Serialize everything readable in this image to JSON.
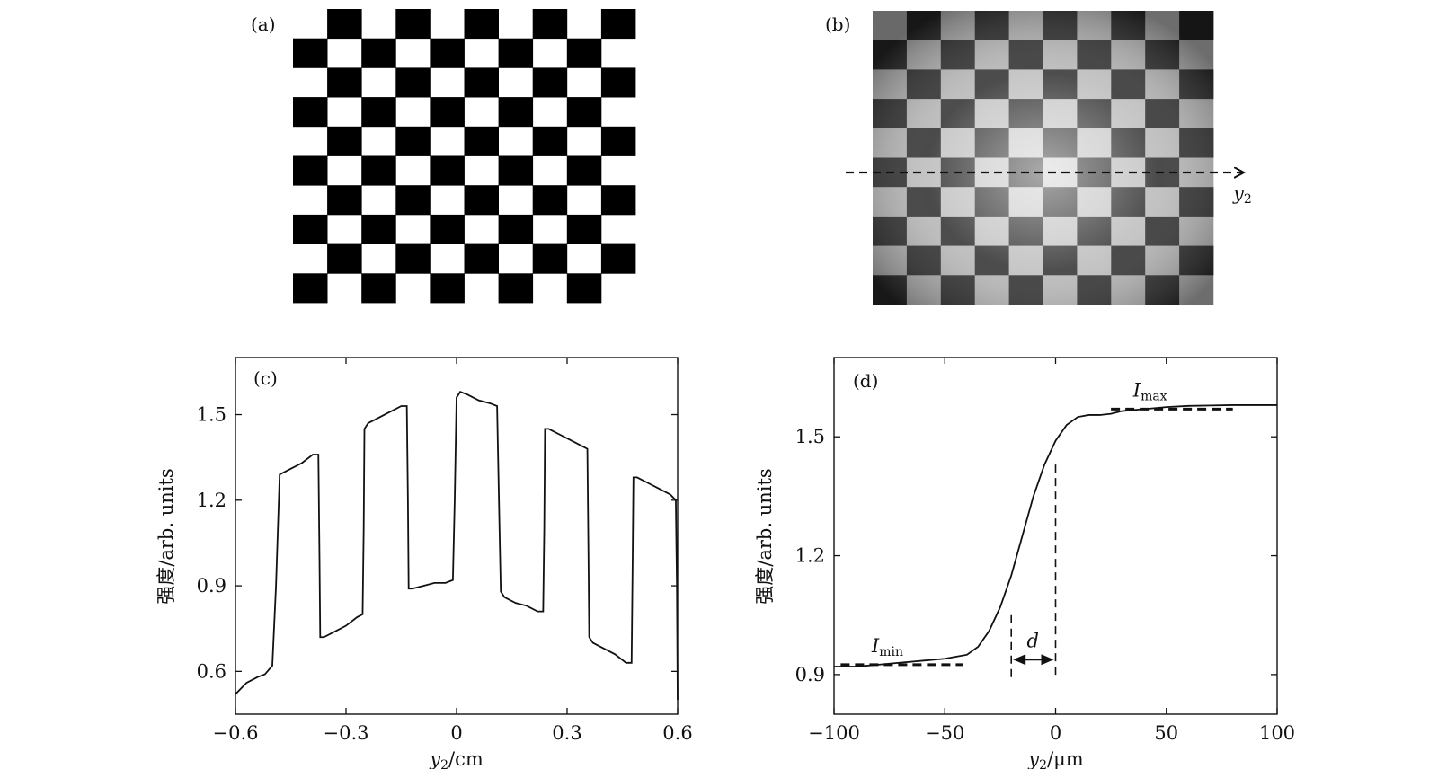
{
  "panels": {
    "a": {
      "label": "(a)",
      "description_free": true
    },
    "b": {
      "label": "(b)",
      "arrow_label_main": "y",
      "arrow_label_sub": "2"
    }
  },
  "chart_data": [
    {
      "panel": "(c)",
      "type": "line",
      "x_label_main": "y",
      "x_label_sub": "2",
      "x_label_unit": "/cm",
      "ylabel": "强度/arb. units",
      "xlim": [
        -0.6,
        0.6
      ],
      "ylim": [
        0.45,
        1.7
      ],
      "xticks": [
        -0.6,
        -0.3,
        0,
        0.3,
        0.6
      ],
      "xtick_labels": [
        "−0.6",
        "−0.3",
        "0",
        "0.3",
        "0.6"
      ],
      "yticks": [
        0.6,
        0.9,
        1.2,
        1.5
      ],
      "ytick_labels": [
        "0.6",
        "0.9",
        "1.2",
        "1.5"
      ],
      "grid": false,
      "series": [
        {
          "x": [
            -0.6,
            -0.57,
            -0.54,
            -0.52,
            -0.5,
            -0.49,
            -0.48,
            -0.45,
            -0.42,
            -0.39,
            -0.375,
            -0.372,
            -0.37,
            -0.36,
            -0.33,
            -0.3,
            -0.27,
            -0.255,
            -0.252,
            -0.25,
            -0.24,
            -0.21,
            -0.18,
            -0.15,
            -0.135,
            -0.132,
            -0.13,
            -0.12,
            -0.09,
            -0.06,
            -0.03,
            -0.01,
            -0.005,
            0.0,
            0.01,
            0.03,
            0.06,
            0.09,
            0.11,
            0.115,
            0.12,
            0.13,
            0.16,
            0.19,
            0.22,
            0.235,
            0.238,
            0.24,
            0.25,
            0.28,
            0.31,
            0.34,
            0.355,
            0.358,
            0.36,
            0.37,
            0.4,
            0.43,
            0.46,
            0.475,
            0.478,
            0.48,
            0.49,
            0.52,
            0.55,
            0.58,
            0.595,
            0.598,
            0.6
          ],
          "y": [
            0.52,
            0.56,
            0.58,
            0.59,
            0.62,
            0.9,
            1.29,
            1.31,
            1.33,
            1.36,
            1.36,
            1.0,
            0.72,
            0.72,
            0.74,
            0.76,
            0.79,
            0.8,
            1.1,
            1.45,
            1.47,
            1.49,
            1.51,
            1.53,
            1.53,
            1.2,
            0.89,
            0.89,
            0.9,
            0.91,
            0.91,
            0.92,
            1.2,
            1.56,
            1.58,
            1.57,
            1.55,
            1.54,
            1.53,
            1.2,
            0.88,
            0.86,
            0.84,
            0.83,
            0.81,
            0.81,
            1.1,
            1.45,
            1.45,
            1.43,
            1.41,
            1.39,
            1.38,
            1.0,
            0.72,
            0.7,
            0.68,
            0.66,
            0.63,
            0.63,
            1.0,
            1.28,
            1.28,
            1.26,
            1.24,
            1.22,
            1.2,
            0.9,
            0.5
          ]
        }
      ]
    },
    {
      "panel": "(d)",
      "type": "line",
      "x_label_main": "y",
      "x_label_sub": "2",
      "x_label_unit": "/μm",
      "ylabel": "强度/arb. units",
      "xlim": [
        -100,
        100
      ],
      "ylim": [
        0.8,
        1.7
      ],
      "xticks": [
        -100,
        -50,
        0,
        50,
        100
      ],
      "xtick_labels": [
        "−100",
        "−50",
        "0",
        "50",
        "100"
      ],
      "yticks": [
        0.9,
        1.2,
        1.5
      ],
      "ytick_labels": [
        "0.9",
        "1.2",
        "1.5"
      ],
      "grid": false,
      "series": [
        {
          "x": [
            -100,
            -90,
            -80,
            -70,
            -60,
            -50,
            -45,
            -40,
            -35,
            -30,
            -25,
            -20,
            -15,
            -10,
            -5,
            0,
            5,
            10,
            15,
            20,
            25,
            30,
            40,
            50,
            60,
            70,
            80,
            90,
            100
          ],
          "y": [
            0.92,
            0.92,
            0.925,
            0.93,
            0.935,
            0.94,
            0.945,
            0.95,
            0.97,
            1.01,
            1.07,
            1.15,
            1.25,
            1.35,
            1.43,
            1.49,
            1.53,
            1.55,
            1.555,
            1.555,
            1.558,
            1.565,
            1.57,
            1.575,
            1.578,
            1.579,
            1.58,
            1.58,
            1.58
          ]
        }
      ],
      "annotations": {
        "imax_main": "I",
        "imax_sub": "max",
        "imin_main": "I",
        "imin_sub": "min",
        "d_label": "d",
        "imax_level": 1.57,
        "imin_level": 0.925,
        "imax_span": [
          25,
          80
        ],
        "imin_span": [
          -97,
          -42
        ],
        "d_span": [
          -20,
          0
        ],
        "d_y": 0.915,
        "left_marker_top": 1.05,
        "right_marker_top": 1.43
      }
    }
  ]
}
